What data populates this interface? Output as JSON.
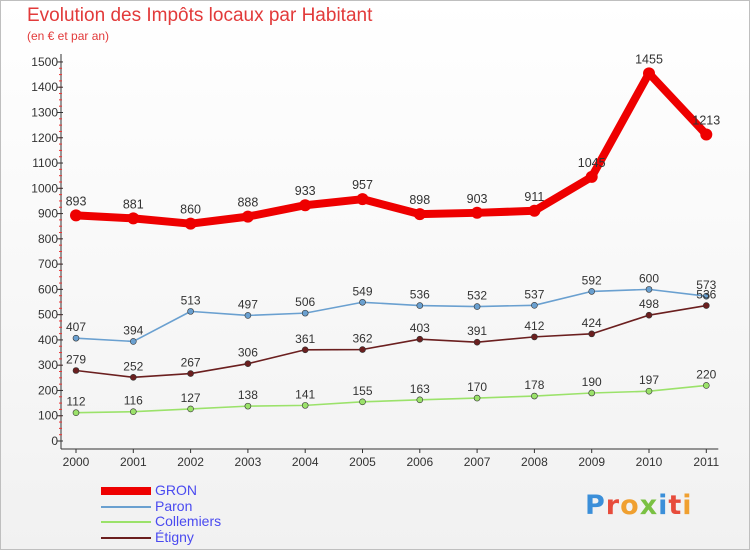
{
  "title": "Evolution des Impôts locaux par Habitant",
  "subtitle": "(en € et par an)",
  "logo": {
    "text": "Proxiti",
    "colors": [
      "#3b8fd9",
      "#e74c3c",
      "#f0a030",
      "#7ac143",
      "#3b8fd9",
      "#e74c3c",
      "#f0a030"
    ]
  },
  "chart_data": {
    "type": "line",
    "title": "Evolution des Impôts locaux par Habitant",
    "subtitle": "(en € et par an)",
    "xlabel": "",
    "ylabel": "",
    "x": [
      2000,
      2001,
      2002,
      2003,
      2004,
      2005,
      2006,
      2007,
      2008,
      2009,
      2010,
      2011
    ],
    "yticks": [
      0,
      100,
      200,
      300,
      400,
      500,
      600,
      700,
      800,
      900,
      1000,
      1100,
      1200,
      1300,
      1400,
      1500
    ],
    "ylim": [
      0,
      1500
    ],
    "grid": false,
    "legend_position": "bottom-left",
    "series": [
      {
        "name": "GRON",
        "color": "#ee0000",
        "values": [
          893,
          881,
          860,
          888,
          933,
          957,
          898,
          903,
          911,
          1045,
          1455,
          1213
        ],
        "labels": [
          "893",
          "881",
          "860",
          "888",
          "933",
          "957",
          "898",
          "903",
          "911",
          "1045",
          "1455",
          "1213"
        ]
      },
      {
        "name": "Paron",
        "color": "#6aa0d0",
        "values": [
          407,
          394,
          513,
          497,
          506,
          549,
          536,
          532,
          537,
          592,
          600,
          573
        ],
        "labels": [
          "407",
          "394",
          "513",
          "497",
          "506",
          "549",
          "536",
          "532",
          "537",
          "592",
          "600",
          "573"
        ]
      },
      {
        "name": "Collemiers",
        "color": "#9be26a",
        "values": [
          112,
          116,
          127,
          138,
          141,
          155,
          163,
          170,
          178,
          190,
          197,
          220
        ],
        "labels": [
          "112",
          "116",
          "127",
          "138",
          "141",
          "155",
          "163",
          "170",
          "178",
          "190",
          "197",
          "220"
        ]
      },
      {
        "name": "Étigny",
        "color": "#6b1f1f",
        "values": [
          279,
          252,
          267,
          306,
          361,
          362,
          403,
          391,
          412,
          424,
          498,
          536
        ],
        "labels": [
          "279",
          "252",
          "267",
          "306",
          "361",
          "362",
          "403",
          "391",
          "412",
          "424",
          "498",
          "536"
        ]
      }
    ]
  }
}
